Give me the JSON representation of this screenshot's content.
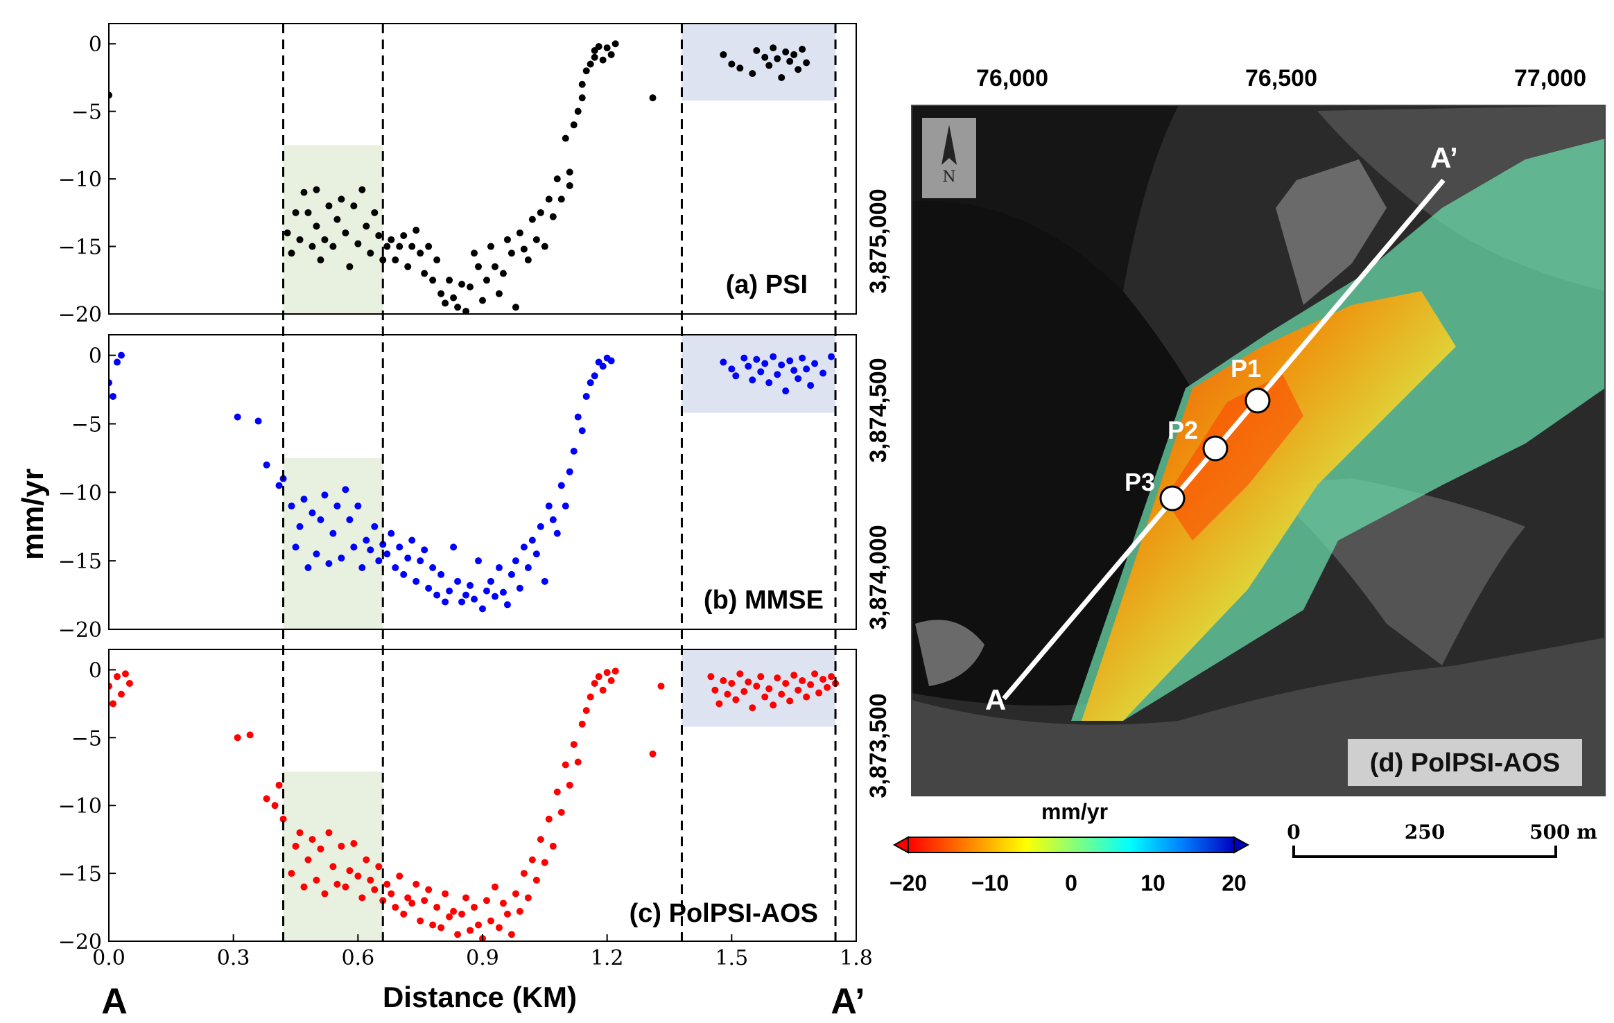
{
  "chart_data": [
    {
      "type": "scatter",
      "panel_label": "(a) PSI",
      "color": "#000000",
      "xlim": [
        0.0,
        1.8
      ],
      "ylim": [
        -20,
        1.5
      ],
      "yticks": [
        "0",
        "−5",
        "−10",
        "−15",
        "−20"
      ],
      "points": [
        [
          0.0,
          -3.8
        ],
        [
          0.43,
          -14
        ],
        [
          0.44,
          -15.5
        ],
        [
          0.45,
          -12.5
        ],
        [
          0.46,
          -14.5
        ],
        [
          0.47,
          -11
        ],
        [
          0.48,
          -12.5
        ],
        [
          0.49,
          -15
        ],
        [
          0.5,
          -13.5
        ],
        [
          0.5,
          -10.8
        ],
        [
          0.51,
          -16
        ],
        [
          0.52,
          -14.5
        ],
        [
          0.53,
          -12
        ],
        [
          0.54,
          -15
        ],
        [
          0.55,
          -13
        ],
        [
          0.56,
          -11.5
        ],
        [
          0.57,
          -14
        ],
        [
          0.58,
          -16.5
        ],
        [
          0.59,
          -12
        ],
        [
          0.6,
          -14.8
        ],
        [
          0.61,
          -10.8
        ],
        [
          0.62,
          -13.5
        ],
        [
          0.63,
          -15.5
        ],
        [
          0.64,
          -12.5
        ],
        [
          0.65,
          -14.2
        ],
        [
          0.66,
          -16
        ],
        [
          0.67,
          -15
        ],
        [
          0.68,
          -14.5
        ],
        [
          0.69,
          -16
        ],
        [
          0.7,
          -15
        ],
        [
          0.71,
          -14.2
        ],
        [
          0.72,
          -16.5
        ],
        [
          0.73,
          -15
        ],
        [
          0.74,
          -13.8
        ],
        [
          0.75,
          -15.5
        ],
        [
          0.76,
          -17
        ],
        [
          0.77,
          -15
        ],
        [
          0.78,
          -17.5
        ],
        [
          0.79,
          -16
        ],
        [
          0.8,
          -18.5
        ],
        [
          0.81,
          -19.2
        ],
        [
          0.82,
          -17.5
        ],
        [
          0.83,
          -18.8
        ],
        [
          0.84,
          -19.5
        ],
        [
          0.85,
          -17.8
        ],
        [
          0.86,
          -19.8
        ],
        [
          0.87,
          -18
        ],
        [
          0.88,
          -15.5
        ],
        [
          0.89,
          -16.5
        ],
        [
          0.9,
          -19
        ],
        [
          0.91,
          -17.5
        ],
        [
          0.92,
          -15
        ],
        [
          0.93,
          -16.5
        ],
        [
          0.94,
          -18.5
        ],
        [
          0.95,
          -17
        ],
        [
          0.96,
          -14.5
        ],
        [
          0.97,
          -15.5
        ],
        [
          0.98,
          -19.5
        ],
        [
          0.99,
          -14
        ],
        [
          1.0,
          -15.2
        ],
        [
          1.01,
          -16
        ],
        [
          1.02,
          -13
        ],
        [
          1.03,
          -14.5
        ],
        [
          1.04,
          -12.5
        ],
        [
          1.05,
          -15
        ],
        [
          1.06,
          -11.5
        ],
        [
          1.07,
          -12.8
        ],
        [
          1.08,
          -10
        ],
        [
          1.09,
          -11.5
        ],
        [
          1.1,
          -7
        ],
        [
          1.11,
          -9.5
        ],
        [
          1.11,
          -10.5
        ],
        [
          1.12,
          -6
        ],
        [
          1.13,
          -5
        ],
        [
          1.14,
          -3
        ],
        [
          1.14,
          -4
        ],
        [
          1.15,
          -2
        ],
        [
          1.16,
          -1.5
        ],
        [
          1.17,
          -0.5
        ],
        [
          1.17,
          -1
        ],
        [
          1.18,
          -0.2
        ],
        [
          1.19,
          -1.2
        ],
        [
          1.2,
          -0.3
        ],
        [
          1.21,
          -0.8
        ],
        [
          1.22,
          0
        ],
        [
          1.31,
          -4
        ],
        [
          1.48,
          -0.8
        ],
        [
          1.5,
          -1.5
        ],
        [
          1.52,
          -1.8
        ],
        [
          1.55,
          -2.2
        ],
        [
          1.56,
          -0.5
        ],
        [
          1.58,
          -1
        ],
        [
          1.59,
          -1.6
        ],
        [
          1.6,
          -0.3
        ],
        [
          1.61,
          -1.1
        ],
        [
          1.62,
          -2.5
        ],
        [
          1.63,
          -0.6
        ],
        [
          1.64,
          -1.3
        ],
        [
          1.65,
          -0.8
        ],
        [
          1.66,
          -1.9
        ],
        [
          1.67,
          -0.4
        ],
        [
          1.68,
          -1.4
        ]
      ]
    },
    {
      "type": "scatter",
      "panel_label": "(b) MMSE",
      "color": "#0000ff",
      "xlim": [
        0.0,
        1.8
      ],
      "ylim": [
        -20,
        1.5
      ],
      "yticks": [
        "0",
        "−5",
        "−10",
        "−15",
        "−20"
      ],
      "points": [
        [
          0.0,
          -2
        ],
        [
          0.01,
          -3
        ],
        [
          0.02,
          -0.5
        ],
        [
          0.03,
          0
        ],
        [
          0.31,
          -4.5
        ],
        [
          0.36,
          -4.8
        ],
        [
          0.38,
          -8
        ],
        [
          0.41,
          -9.5
        ],
        [
          0.42,
          -9
        ],
        [
          0.44,
          -11
        ],
        [
          0.45,
          -14
        ],
        [
          0.46,
          -12.5
        ],
        [
          0.47,
          -10.5
        ],
        [
          0.48,
          -15.5
        ],
        [
          0.49,
          -11.5
        ],
        [
          0.5,
          -14.5
        ],
        [
          0.51,
          -12
        ],
        [
          0.52,
          -10.2
        ],
        [
          0.53,
          -15.2
        ],
        [
          0.54,
          -13
        ],
        [
          0.55,
          -11
        ],
        [
          0.56,
          -14.8
        ],
        [
          0.57,
          -9.8
        ],
        [
          0.58,
          -12
        ],
        [
          0.59,
          -14
        ],
        [
          0.6,
          -11
        ],
        [
          0.61,
          -15.5
        ],
        [
          0.62,
          -13.5
        ],
        [
          0.63,
          -14.2
        ],
        [
          0.64,
          -12.5
        ],
        [
          0.65,
          -15
        ],
        [
          0.66,
          -13.8
        ],
        [
          0.67,
          -14.5
        ],
        [
          0.68,
          -13
        ],
        [
          0.69,
          -15.5
        ],
        [
          0.7,
          -14
        ],
        [
          0.71,
          -16
        ],
        [
          0.72,
          -14.8
        ],
        [
          0.73,
          -13.5
        ],
        [
          0.74,
          -16.5
        ],
        [
          0.75,
          -15
        ],
        [
          0.76,
          -14.2
        ],
        [
          0.77,
          -17
        ],
        [
          0.78,
          -15.5
        ],
        [
          0.79,
          -17.5
        ],
        [
          0.8,
          -16
        ],
        [
          0.81,
          -18
        ],
        [
          0.82,
          -17.2
        ],
        [
          0.83,
          -14
        ],
        [
          0.84,
          -16.5
        ],
        [
          0.85,
          -18
        ],
        [
          0.86,
          -17.5
        ],
        [
          0.87,
          -16.8
        ],
        [
          0.88,
          -17.8
        ],
        [
          0.89,
          -15
        ],
        [
          0.9,
          -18.5
        ],
        [
          0.91,
          -17.2
        ],
        [
          0.92,
          -16.5
        ],
        [
          0.93,
          -17.6
        ],
        [
          0.94,
          -15.5
        ],
        [
          0.95,
          -17.3
        ],
        [
          0.96,
          -18.2
        ],
        [
          0.97,
          -16
        ],
        [
          0.98,
          -15
        ],
        [
          0.99,
          -17
        ],
        [
          1.0,
          -14
        ],
        [
          1.01,
          -15.5
        ],
        [
          1.02,
          -13.5
        ],
        [
          1.03,
          -14.5
        ],
        [
          1.04,
          -12.5
        ],
        [
          1.05,
          -16.5
        ],
        [
          1.06,
          -11
        ],
        [
          1.07,
          -12
        ],
        [
          1.08,
          -13
        ],
        [
          1.09,
          -9.5
        ],
        [
          1.1,
          -11
        ],
        [
          1.11,
          -8.5
        ],
        [
          1.12,
          -7
        ],
        [
          1.13,
          -4.5
        ],
        [
          1.14,
          -5.5
        ],
        [
          1.15,
          -3
        ],
        [
          1.16,
          -2
        ],
        [
          1.17,
          -1.5
        ],
        [
          1.18,
          -0.5
        ],
        [
          1.19,
          -0.8
        ],
        [
          1.2,
          -0.2
        ],
        [
          1.21,
          -0.4
        ],
        [
          1.48,
          -0.5
        ],
        [
          1.5,
          -1
        ],
        [
          1.51,
          -1.5
        ],
        [
          1.53,
          -0.2
        ],
        [
          1.54,
          -0.8
        ],
        [
          1.55,
          -1.8
        ],
        [
          1.56,
          -0.3
        ],
        [
          1.57,
          -1.2
        ],
        [
          1.58,
          -0.6
        ],
        [
          1.59,
          -2
        ],
        [
          1.6,
          -0.1
        ],
        [
          1.61,
          -1.4
        ],
        [
          1.62,
          -0.7
        ],
        [
          1.63,
          -2.6
        ],
        [
          1.64,
          -0.4
        ],
        [
          1.65,
          -1.1
        ],
        [
          1.66,
          -1.7
        ],
        [
          1.67,
          -0.2
        ],
        [
          1.68,
          -1
        ],
        [
          1.69,
          -2.2
        ],
        [
          1.7,
          -0.6
        ],
        [
          1.72,
          -1.3
        ],
        [
          1.74,
          -0.1
        ]
      ]
    },
    {
      "type": "scatter",
      "panel_label": "(c) PolPSI-AOS",
      "color": "#ff0000",
      "xlim": [
        0.0,
        1.8
      ],
      "ylim": [
        -20,
        1.5
      ],
      "yticks": [
        "0",
        "−5",
        "−10",
        "−15",
        "−20"
      ],
      "points": [
        [
          0.0,
          -1.2
        ],
        [
          0.01,
          -2.5
        ],
        [
          0.02,
          -0.5
        ],
        [
          0.03,
          -1.8
        ],
        [
          0.04,
          -0.3
        ],
        [
          0.05,
          -1
        ],
        [
          0.31,
          -5
        ],
        [
          0.34,
          -4.8
        ],
        [
          0.38,
          -9.5
        ],
        [
          0.4,
          -10
        ],
        [
          0.41,
          -8.5
        ],
        [
          0.42,
          -11
        ],
        [
          0.44,
          -15
        ],
        [
          0.45,
          -13
        ],
        [
          0.46,
          -12
        ],
        [
          0.47,
          -16
        ],
        [
          0.48,
          -14
        ],
        [
          0.49,
          -12.5
        ],
        [
          0.5,
          -15.5
        ],
        [
          0.51,
          -13.2
        ],
        [
          0.52,
          -16.5
        ],
        [
          0.53,
          -12
        ],
        [
          0.54,
          -14.5
        ],
        [
          0.55,
          -15.8
        ],
        [
          0.56,
          -13
        ],
        [
          0.57,
          -16
        ],
        [
          0.58,
          -14.8
        ],
        [
          0.59,
          -12.8
        ],
        [
          0.6,
          -15.2
        ],
        [
          0.61,
          -16.8
        ],
        [
          0.62,
          -14
        ],
        [
          0.63,
          -15.5
        ],
        [
          0.64,
          -16.2
        ],
        [
          0.65,
          -14.5
        ],
        [
          0.66,
          -17
        ],
        [
          0.67,
          -15.8
        ],
        [
          0.68,
          -16.5
        ],
        [
          0.69,
          -17.5
        ],
        [
          0.7,
          -15.2
        ],
        [
          0.71,
          -18
        ],
        [
          0.72,
          -16.8
        ],
        [
          0.73,
          -17.2
        ],
        [
          0.74,
          -15.8
        ],
        [
          0.75,
          -18.5
        ],
        [
          0.76,
          -17
        ],
        [
          0.77,
          -16.2
        ],
        [
          0.78,
          -18.8
        ],
        [
          0.79,
          -17.5
        ],
        [
          0.8,
          -19
        ],
        [
          0.81,
          -16.5
        ],
        [
          0.82,
          -18.2
        ],
        [
          0.83,
          -17.8
        ],
        [
          0.84,
          -19.5
        ],
        [
          0.85,
          -18
        ],
        [
          0.86,
          -16.8
        ],
        [
          0.87,
          -19.2
        ],
        [
          0.88,
          -17.5
        ],
        [
          0.89,
          -18.8
        ],
        [
          0.9,
          -19.8
        ],
        [
          0.91,
          -17
        ],
        [
          0.92,
          -18.5
        ],
        [
          0.93,
          -16
        ],
        [
          0.94,
          -19
        ],
        [
          0.95,
          -17.2
        ],
        [
          0.96,
          -18
        ],
        [
          0.97,
          -19.5
        ],
        [
          0.98,
          -16.5
        ],
        [
          0.99,
          -17.8
        ],
        [
          1.0,
          -15
        ],
        [
          1.01,
          -16.8
        ],
        [
          1.02,
          -14
        ],
        [
          1.03,
          -15.5
        ],
        [
          1.04,
          -12.5
        ],
        [
          1.05,
          -14.2
        ],
        [
          1.06,
          -11
        ],
        [
          1.07,
          -13
        ],
        [
          1.08,
          -9
        ],
        [
          1.09,
          -10.5
        ],
        [
          1.1,
          -7
        ],
        [
          1.11,
          -8.5
        ],
        [
          1.12,
          -5.5
        ],
        [
          1.13,
          -6.8
        ],
        [
          1.14,
          -4
        ],
        [
          1.15,
          -3
        ],
        [
          1.16,
          -2
        ],
        [
          1.17,
          -1
        ],
        [
          1.18,
          -0.5
        ],
        [
          1.19,
          -1.5
        ],
        [
          1.2,
          -0.2
        ],
        [
          1.21,
          -0.8
        ],
        [
          1.22,
          -0.1
        ],
        [
          1.31,
          -6.2
        ],
        [
          1.33,
          -1.2
        ],
        [
          1.45,
          -0.5
        ],
        [
          1.46,
          -1.5
        ],
        [
          1.47,
          -2.5
        ],
        [
          1.48,
          -0.8
        ],
        [
          1.49,
          -1.8
        ],
        [
          1.5,
          -1
        ],
        [
          1.51,
          -2.2
        ],
        [
          1.52,
          -0.3
        ],
        [
          1.53,
          -1.6
        ],
        [
          1.54,
          -0.9
        ],
        [
          1.55,
          -2.8
        ],
        [
          1.56,
          -1.2
        ],
        [
          1.57,
          -0.5
        ],
        [
          1.58,
          -2
        ],
        [
          1.59,
          -1.4
        ],
        [
          1.6,
          -2.6
        ],
        [
          1.61,
          -0.6
        ],
        [
          1.62,
          -1.8
        ],
        [
          1.63,
          -1
        ],
        [
          1.64,
          -2.3
        ],
        [
          1.65,
          -0.4
        ],
        [
          1.66,
          -1.5
        ],
        [
          1.67,
          -0.8
        ],
        [
          1.68,
          -2
        ],
        [
          1.69,
          -1.1
        ],
        [
          1.7,
          -0.3
        ],
        [
          1.71,
          -1.7
        ],
        [
          1.72,
          -0.7
        ],
        [
          1.73,
          -1.3
        ],
        [
          1.74,
          -0.5
        ],
        [
          1.75,
          -1
        ]
      ]
    }
  ],
  "shared_axes": {
    "ylabel": "mm/yr",
    "xlabel": "Distance (KM)",
    "xticks": [
      "0.0",
      "0.3",
      "0.6",
      "0.9",
      "1.2",
      "1.5",
      "1.8"
    ],
    "dashed_lines_km": [
      0.42,
      0.66,
      1.38,
      1.75
    ],
    "green_region_km": [
      0.42,
      0.66
    ],
    "green_region_mmyr": [
      -20,
      -7.5
    ],
    "blue_region_km": [
      1.38,
      1.75
    ],
    "blue_region_mmyr": [
      -4.2,
      1.5
    ],
    "start_label": "A",
    "end_label": "A’"
  },
  "map": {
    "title": "(d) PolPSI-AOS",
    "easting_ticks": [
      "76,000",
      "76,500",
      "77,000"
    ],
    "northing_ticks": [
      "3,875,000",
      "3,874,500",
      "3,874,000",
      "3,873,500"
    ],
    "north_arrow_letter": "N",
    "profile_start": "A",
    "profile_end": "A’",
    "points": [
      "P1",
      "P2",
      "P3"
    ],
    "colorbar_title": "mm/yr",
    "colorbar_ticks": [
      "−20",
      "−10",
      "0",
      "10",
      "20"
    ],
    "colorbar_colors": [
      "#ff0000",
      "#ff8000",
      "#ffff00",
      "#80ff80",
      "#00ffff",
      "#0080ff",
      "#0000c0"
    ],
    "scale_ticks": [
      "0",
      "250",
      "500 m"
    ]
  }
}
